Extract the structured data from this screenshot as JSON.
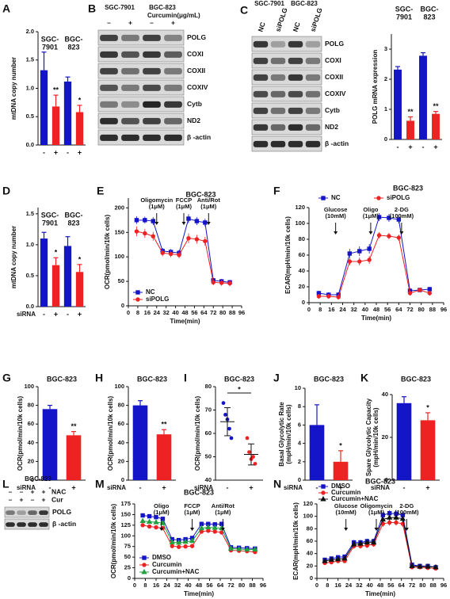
{
  "chart_data": [
    {
      "type": "bar",
      "panel_label": "A",
      "ylabel": "mtDNA copy number",
      "groups": [
        [
          "SGC-",
          "7901"
        ],
        [
          "BGC-",
          "823"
        ]
      ],
      "categories": [
        "-",
        "+",
        "-",
        "+"
      ],
      "values": [
        1.32,
        0.68,
        1.12,
        0.58
      ],
      "errors": [
        0.32,
        0.2,
        0.08,
        0.12
      ],
      "colors": [
        "#1414c8",
        "#ee2222",
        "#1414c8",
        "#ee2222"
      ],
      "sig": [
        null,
        "**",
        null,
        "*"
      ],
      "ylim": [
        0,
        2
      ],
      "yticks": [
        {
          "value": 0,
          "label": "0.0"
        },
        0.5,
        {
          "value": 1,
          "label": "1.0"
        },
        1.5,
        {
          "value": 2,
          "label": "2.0"
        }
      ]
    },
    {
      "type": "bar",
      "ylabel": "POLG mRNA expression",
      "groups": [
        [
          "SGC-",
          "7901"
        ],
        [
          "BGC-",
          "823"
        ]
      ],
      "categories": [
        "-",
        "+",
        "-",
        "+"
      ],
      "values": [
        2.32,
        0.62,
        2.78,
        0.85
      ],
      "errors": [
        0.1,
        0.13,
        0.1,
        0.08
      ],
      "colors": [
        "#1414c8",
        "#ee2222",
        "#1414c8",
        "#ee2222"
      ],
      "sig": [
        null,
        "**",
        null,
        "**"
      ],
      "ylim": [
        0,
        3.5
      ],
      "yticks": [
        0,
        1,
        2,
        3
      ]
    },
    {
      "type": "bar",
      "panel_label": "D",
      "ylabel": "mtDNA copy number",
      "groups": [
        [
          "SGC-",
          "7901"
        ],
        [
          "BGC-",
          "823"
        ]
      ],
      "categories": [
        "-",
        "+",
        "-",
        "+"
      ],
      "x_prefix": "siRNA",
      "values": [
        1.1,
        0.67,
        0.98,
        0.56
      ],
      "errors": [
        0.1,
        0.12,
        0.15,
        0.12
      ],
      "colors": [
        "#1414c8",
        "#ee2222",
        "#1414c8",
        "#ee2222"
      ],
      "sig": [
        null,
        "*",
        null,
        "*"
      ],
      "ylim": [
        0,
        1.6
      ],
      "yticks": [
        {
          "value": 0,
          "label": "0.0"
        },
        0.5,
        {
          "value": 1,
          "label": "1.0"
        },
        1.5
      ]
    },
    {
      "type": "line",
      "panel_label": "E",
      "title": "BGC-823",
      "ylabel": "OCR(pmol/min/10k cells)",
      "xlabel": "Time(min)",
      "x": [
        7,
        14,
        21,
        29,
        36,
        43,
        51,
        58,
        65,
        72,
        79,
        86
      ],
      "series": [
        {
          "name": "NC",
          "color": "#1414c8",
          "marker": "square",
          "values": [
            175,
            175,
            173,
            112,
            110,
            108,
            178,
            173,
            170,
            52,
            50,
            48
          ],
          "errors": [
            8,
            7,
            8,
            6,
            6,
            6,
            9,
            8,
            8,
            5,
            5,
            5
          ]
        },
        {
          "name": "siPOLG",
          "color": "#ee2222",
          "marker": "circle",
          "values": [
            152,
            148,
            142,
            108,
            106,
            104,
            138,
            136,
            132,
            48,
            47,
            46
          ],
          "errors": [
            10,
            9,
            9,
            7,
            7,
            7,
            10,
            9,
            9,
            6,
            6,
            6
          ]
        }
      ],
      "xlim": [
        0,
        96
      ],
      "xticks": [
        0,
        8,
        16,
        24,
        32,
        40,
        48,
        56,
        64,
        72,
        80,
        88,
        96
      ],
      "ylim": [
        0,
        220
      ],
      "yticks": [
        0,
        50,
        100,
        150,
        200
      ],
      "legend": "lower-left",
      "annotations": [
        {
          "lines": [
            "Oligomycin",
            "(1μM)"
          ],
          "x": 24
        },
        {
          "lines": [
            "FCCP",
            "(1μM)"
          ],
          "x": 47
        },
        {
          "lines": [
            "Anti/Rot",
            "(1μM)"
          ],
          "x": 68
        }
      ]
    },
    {
      "type": "line",
      "panel_label": "F",
      "title": "BGC-823",
      "ylabel": "ECAR(mpH/min/10k cells)",
      "xlabel": "Time(min)",
      "x": [
        7,
        14,
        21,
        29,
        36,
        43,
        50,
        57,
        64,
        72,
        79,
        86
      ],
      "series": [
        {
          "name": "NC",
          "color": "#1414c8",
          "marker": "square",
          "values": [
            12,
            10,
            10,
            62,
            65,
            68,
            108,
            107,
            105,
            15,
            16,
            17
          ],
          "errors": [
            3,
            3,
            3,
            6,
            6,
            6,
            5,
            5,
            5,
            3,
            3,
            3
          ]
        },
        {
          "name": "siPOLG",
          "color": "#ee2222",
          "marker": "circle",
          "values": [
            8,
            8,
            7,
            52,
            52,
            54,
            85,
            84,
            82,
            12,
            16,
            12
          ],
          "errors": [
            3,
            3,
            3,
            5,
            5,
            5,
            4,
            4,
            4,
            3,
            3,
            3
          ]
        }
      ],
      "xlim": [
        0,
        96
      ],
      "xticks": [
        0,
        8,
        16,
        24,
        32,
        40,
        48,
        56,
        64,
        72,
        80,
        88,
        96
      ],
      "ylim": [
        0,
        120
      ],
      "yticks": [
        0,
        20,
        40,
        60,
        80,
        100,
        120
      ],
      "legend": "top",
      "annotations": [
        {
          "lines": [
            "Glucose",
            "(10mM)"
          ],
          "x": 19
        },
        {
          "lines": [
            "Oligo",
            "(1μM)"
          ],
          "x": 44
        },
        {
          "lines": [
            "2-DG",
            "(100mM)"
          ],
          "x": 66
        }
      ]
    },
    {
      "type": "bar",
      "panel_label": "G",
      "title": "BGC-823",
      "ylabel": "OCR(pmol/min/10k cells)",
      "categories": [
        "-",
        "+"
      ],
      "x_prefix": "siRNA",
      "values": [
        76,
        48
      ],
      "errors": [
        4,
        4
      ],
      "colors": [
        "#1414c8",
        "#ee2222"
      ],
      "sig": [
        null,
        "**"
      ],
      "ylim": [
        0,
        100
      ],
      "yticks": [
        0,
        20,
        40,
        60,
        80,
        100
      ]
    },
    {
      "type": "bar",
      "panel_label": "H",
      "title": "BGC-823",
      "ylabel": "OCR(pmol/min/10k cells)",
      "categories": [
        "-",
        "+"
      ],
      "x_prefix": "siRNA",
      "values": [
        80,
        49
      ],
      "errors": [
        5,
        5
      ],
      "colors": [
        "#1414c8",
        "#ee2222"
      ],
      "sig": [
        null,
        "**"
      ],
      "ylim": [
        0,
        100
      ],
      "yticks": [
        0,
        20,
        40,
        60,
        80,
        100
      ]
    },
    {
      "type": "dot",
      "panel_label": "I",
      "title": "BGC-823",
      "ylabel": "OCR(pmol/min/10k cells)",
      "categories": [
        "-",
        "+"
      ],
      "x_prefix": "siRNA",
      "points": [
        [
          73,
          68,
          66,
          62,
          58
        ],
        [
          58,
          52,
          49,
          50,
          47
        ]
      ],
      "values": [
        65,
        51
      ],
      "errors": [
        6,
        4.5
      ],
      "colors": [
        "#1414c8",
        "#ee2222"
      ],
      "sig_bracket": "*",
      "ylim": [
        40,
        80
      ],
      "yticks": [
        40,
        50,
        60,
        70,
        80
      ]
    },
    {
      "type": "bar",
      "panel_label": "J",
      "title": "BGC-823",
      "ylabel": [
        "Basal Glycolytic Rate",
        "(mpH/min/10k cells)"
      ],
      "categories": [
        "-",
        "+"
      ],
      "x_prefix": "siRNA",
      "values": [
        6,
        2
      ],
      "errors": [
        2.2,
        1.2
      ],
      "colors": [
        "#1414c8",
        "#ee2222"
      ],
      "sig": [
        null,
        "*"
      ],
      "ylim": [
        0,
        10
      ],
      "yticks": [
        0,
        2,
        4,
        6,
        8,
        10
      ]
    },
    {
      "type": "bar",
      "panel_label": "K",
      "title": "BGC-823",
      "ylabel": [
        "Spare Glycolytic Capacity",
        "(mpH/min/10k cells)"
      ],
      "categories": [
        "-",
        "+"
      ],
      "x_prefix": "siRNA",
      "values": [
        36,
        28
      ],
      "errors": [
        3,
        3.5
      ],
      "colors": [
        "#1414c8",
        "#ee2222"
      ],
      "sig": [
        null,
        "*"
      ],
      "ylim": [
        0,
        40
      ],
      "yticks": [
        0,
        20,
        40
      ]
    },
    {
      "type": "line",
      "panel_label": "M",
      "title": "BGC-823",
      "ylabel": "OCR(pmol/min/10k cells)",
      "xlabel": "Time(min)",
      "x": [
        6,
        11,
        16,
        21,
        28,
        33,
        38,
        43,
        50,
        55,
        60,
        65,
        72,
        78,
        84,
        90
      ],
      "series": [
        {
          "name": "DMSO",
          "color": "#1414c8",
          "marker": "square",
          "values": [
            148,
            146,
            144,
            140,
            92,
            90,
            92,
            95,
            128,
            128,
            127,
            128,
            73,
            72,
            71,
            70
          ],
          "errors": [
            4,
            4,
            4,
            4,
            3,
            3,
            3,
            3,
            4,
            4,
            4,
            4,
            3,
            3,
            3,
            3
          ]
        },
        {
          "name": "Curcumin",
          "color": "#ee2222",
          "marker": "circle",
          "values": [
            125,
            122,
            120,
            118,
            76,
            74,
            75,
            76,
            110,
            112,
            110,
            108,
            66,
            65,
            64,
            62
          ],
          "errors": [
            4,
            4,
            4,
            4,
            3,
            3,
            3,
            3,
            4,
            4,
            4,
            4,
            3,
            3,
            3,
            3
          ]
        },
        {
          "name": "Curcumin+NAC",
          "color": "#22a040",
          "marker": "triangle",
          "values": [
            135,
            133,
            132,
            130,
            85,
            84,
            86,
            88,
            118,
            120,
            119,
            118,
            70,
            69,
            68,
            68
          ],
          "errors": [
            4,
            4,
            4,
            4,
            3,
            3,
            3,
            3,
            4,
            4,
            4,
            4,
            3,
            3,
            3,
            3
          ]
        }
      ],
      "xlim": [
        0,
        96
      ],
      "xticks": [
        0,
        8,
        16,
        24,
        32,
        40,
        48,
        56,
        64,
        72,
        80,
        88,
        96
      ],
      "ylim": [
        0,
        175
      ],
      "yticks": [
        0,
        25,
        50,
        75,
        100,
        125,
        150,
        175
      ],
      "legend": "lower-left",
      "annotations": [
        {
          "lines": [
            "Oligo",
            "(1μM)"
          ],
          "x": 20
        },
        {
          "lines": [
            "FCCP",
            "(1μM)"
          ],
          "x": 43
        },
        {
          "lines": [
            "Anti/Rot",
            "(1μM)"
          ],
          "x": 66
        }
      ]
    },
    {
      "type": "line",
      "panel_label": "N",
      "title": "BGC-823",
      "ylabel": "ECAR(mpH/min/10k cells)",
      "xlabel": "Time(min)",
      "x": [
        6,
        11,
        16,
        21,
        28,
        33,
        38,
        43,
        50,
        55,
        60,
        65,
        72,
        78,
        84,
        90
      ],
      "series": [
        {
          "name": "DMSO",
          "color": "#1414c8",
          "marker": "square",
          "values": [
            30,
            32,
            34,
            35,
            58,
            58,
            60,
            60,
            102,
            105,
            104,
            102,
            22,
            20,
            20,
            18
          ],
          "errors": [
            3,
            3,
            3,
            3,
            4,
            4,
            4,
            4,
            5,
            5,
            5,
            5,
            3,
            3,
            3,
            3
          ]
        },
        {
          "name": "Curcumin",
          "color": "#ee2222",
          "marker": "circle",
          "values": [
            25,
            26,
            28,
            28,
            52,
            52,
            53,
            55,
            88,
            90,
            90,
            88,
            18,
            18,
            17,
            16
          ],
          "errors": [
            3,
            3,
            3,
            3,
            4,
            4,
            4,
            4,
            5,
            5,
            5,
            5,
            3,
            3,
            3,
            3
          ]
        },
        {
          "name": "Curcumin+NAC",
          "color": "#111111",
          "marker": "triangle",
          "values": [
            28,
            30,
            31,
            32,
            55,
            56,
            58,
            58,
            95,
            98,
            98,
            96,
            20,
            19,
            19,
            18
          ],
          "errors": [
            3,
            3,
            3,
            3,
            4,
            4,
            4,
            4,
            5,
            5,
            5,
            5,
            3,
            3,
            3,
            3
          ]
        }
      ],
      "xlim": [
        0,
        96
      ],
      "xticks": [
        0,
        8,
        16,
        24,
        32,
        40,
        48,
        56,
        64,
        72,
        80,
        88,
        96
      ],
      "ylim": [
        0,
        120
      ],
      "yticks": [
        0,
        20,
        40,
        60,
        80,
        100,
        120
      ],
      "legend": "upper-left",
      "annotations": [
        {
          "lines": [
            "Glucose",
            "(10mM)"
          ],
          "x": 22
        },
        {
          "lines": [
            "Oligomycin",
            "(1μM)"
          ],
          "x": 45
        },
        {
          "lines": [
            "2-DG",
            "(100mM)"
          ],
          "x": 68
        }
      ]
    }
  ],
  "blots": [
    {
      "panel_label": "B",
      "cell_lines": [
        "SGC-7901",
        "BGC-823"
      ],
      "treatment": "Curcumin(μg/mL)",
      "lanes": [
        "–",
        "+",
        "–",
        "+"
      ],
      "rows": [
        "POLG",
        "COXI",
        "COXII",
        "COXIV",
        "Cytb",
        "ND2",
        "β -actin"
      ]
    },
    {
      "panel_label": "C",
      "cell_lines": [
        "SGC-7901",
        "BGC-823"
      ],
      "lanes": [
        "NC",
        "siPOLG",
        "NC",
        "siPOLG"
      ],
      "rows": [
        "POLG",
        "COXI",
        "COXII",
        "COXIV",
        "Cytb",
        "ND2",
        "β -actin"
      ]
    },
    {
      "panel_label": "L",
      "title": "BGC-823",
      "conditions": [
        {
          "name": "NAC",
          "lanes": [
            "–",
            "–",
            "+",
            "+"
          ]
        },
        {
          "name": "Cur",
          "lanes": [
            "–",
            "+",
            "–",
            "+"
          ]
        }
      ],
      "rows": [
        "POLG",
        "β -actin"
      ]
    }
  ]
}
